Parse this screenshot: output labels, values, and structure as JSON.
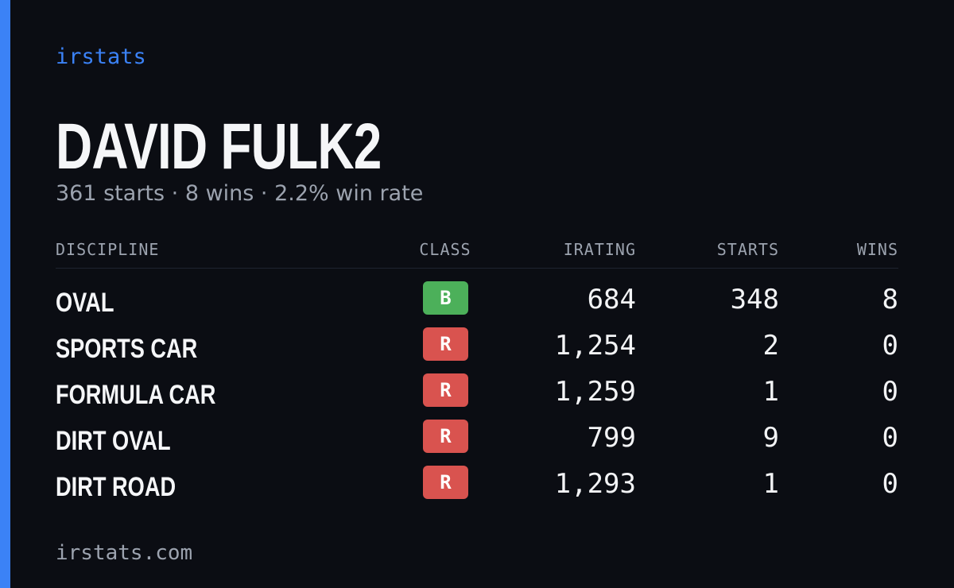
{
  "brand": "irstats",
  "driver": {
    "name": "DAVID FULK2",
    "summary": "361 starts · 8 wins · 2.2% win rate"
  },
  "table": {
    "headers": [
      "DISCIPLINE",
      "CLASS",
      "IRATING",
      "STARTS",
      "WINS"
    ],
    "rows": [
      {
        "discipline": "OVAL",
        "class": "B",
        "badge_color": "#4cb05a",
        "irating": "684",
        "starts": "348",
        "wins": "8"
      },
      {
        "discipline": "SPORTS CAR",
        "class": "R",
        "badge_color": "#d9534f",
        "irating": "1,254",
        "starts": "2",
        "wins": "0"
      },
      {
        "discipline": "FORMULA CAR",
        "class": "R",
        "badge_color": "#d9534f",
        "irating": "1,259",
        "starts": "1",
        "wins": "0"
      },
      {
        "discipline": "DIRT OVAL",
        "class": "R",
        "badge_color": "#d9534f",
        "irating": "799",
        "starts": "9",
        "wins": "0"
      },
      {
        "discipline": "DIRT ROAD",
        "class": "R",
        "badge_color": "#d9534f",
        "irating": "1,293",
        "starts": "1",
        "wins": "0"
      }
    ]
  },
  "footer": "irstats.com"
}
